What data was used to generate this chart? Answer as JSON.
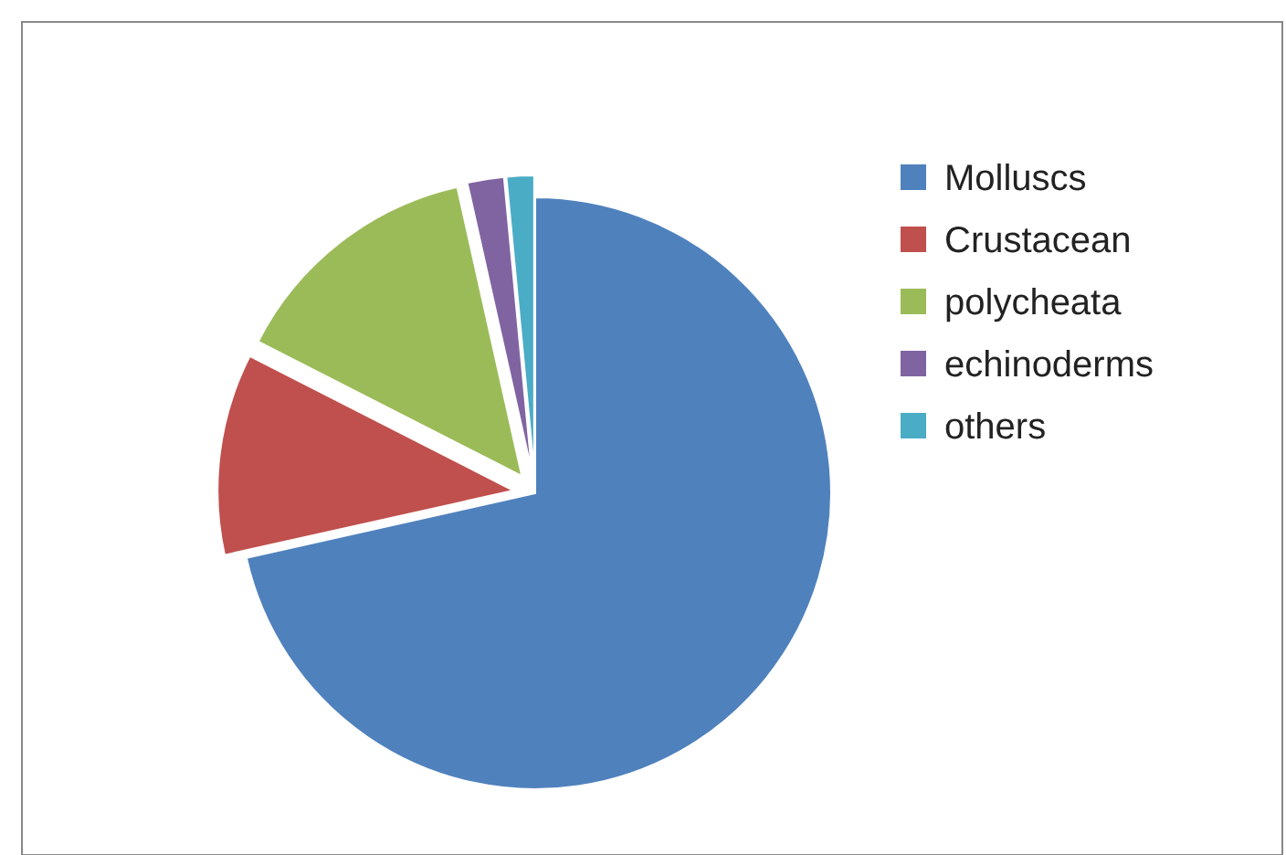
{
  "chart_data": {
    "type": "pie",
    "categories": [
      "Molluscs",
      "Crustacean",
      "polycheata",
      "echinoderms",
      "others"
    ],
    "values": [
      71.5,
      11,
      14,
      2,
      1.5
    ],
    "colors": [
      "#4f81bd",
      "#c0504d",
      "#9bbb59",
      "#8064a2",
      "#4bacc6"
    ],
    "legend": "right"
  }
}
